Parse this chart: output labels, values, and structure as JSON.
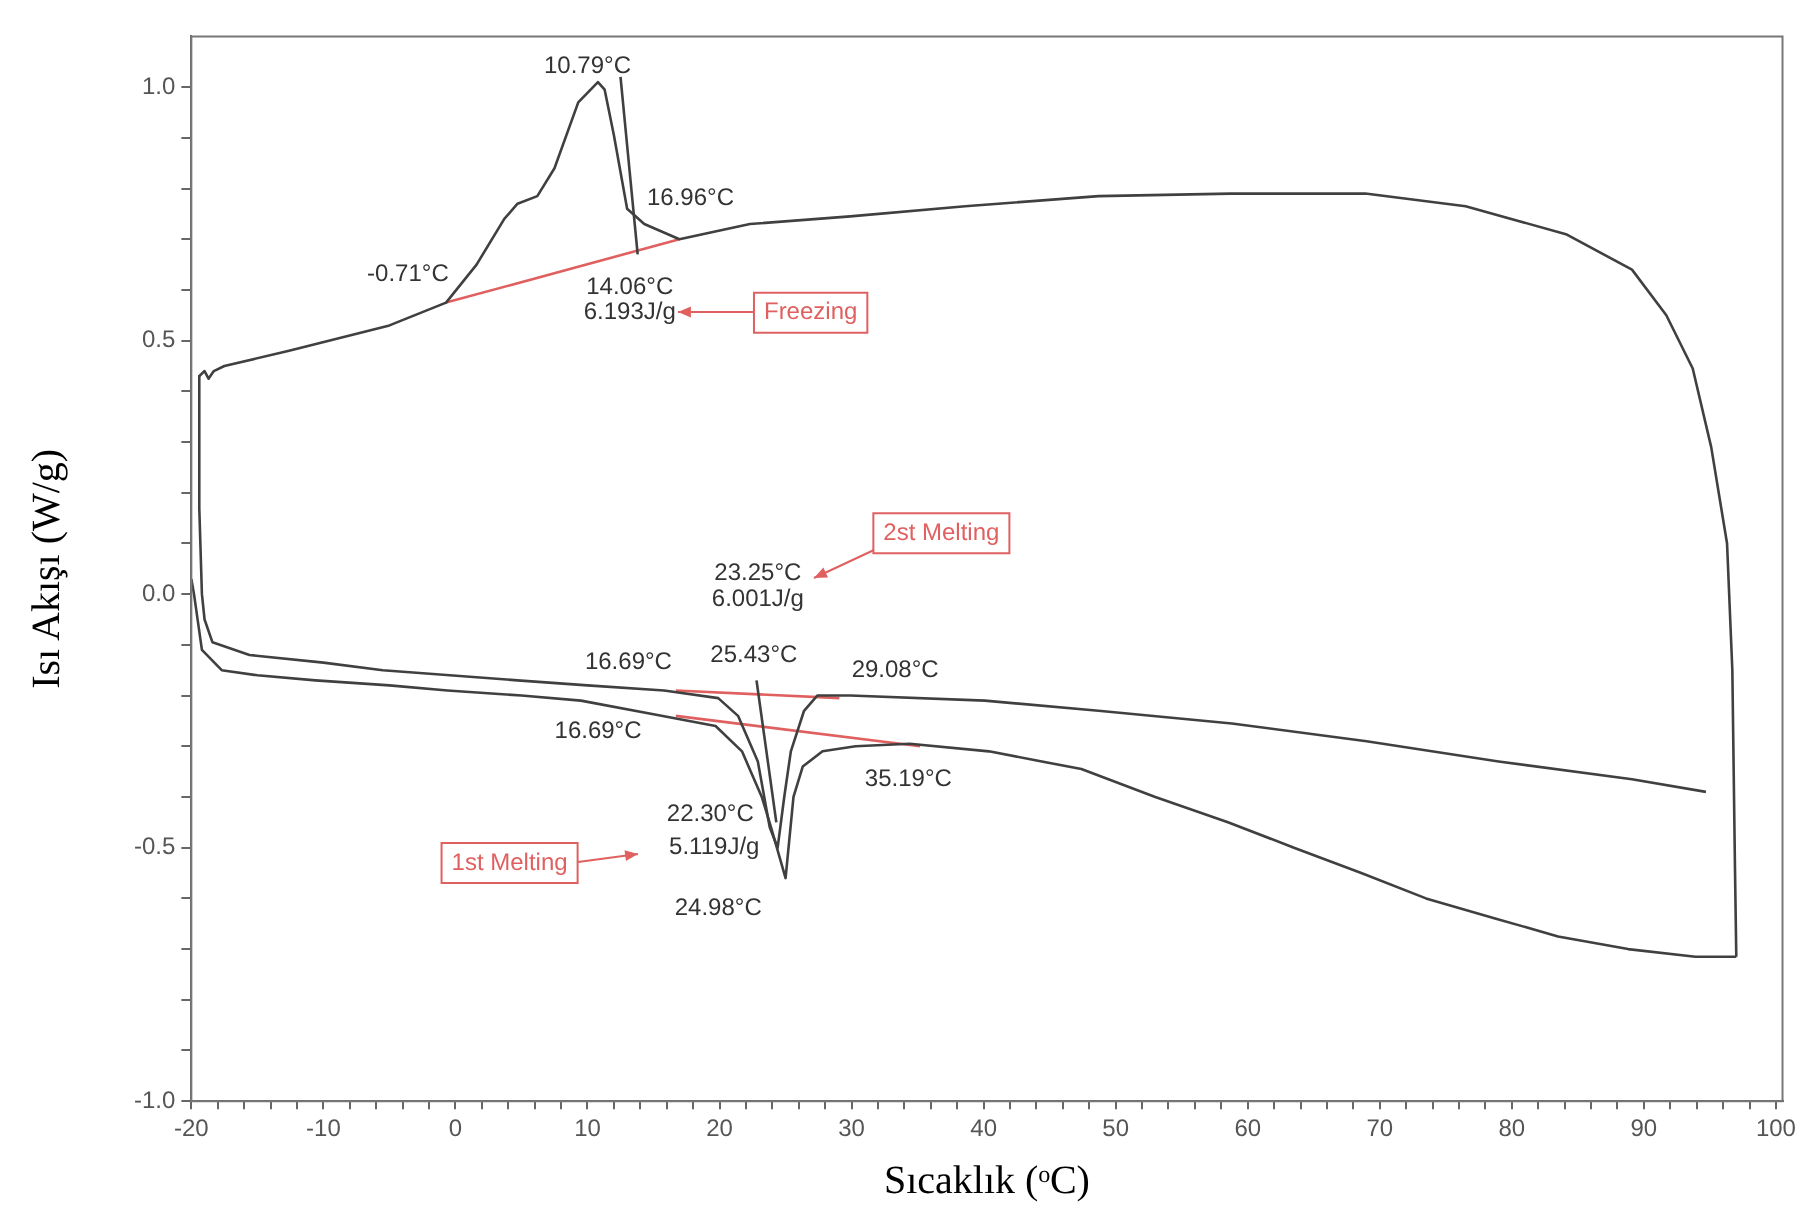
{
  "chart_data": {
    "type": "line",
    "xlabel": "Sıcaklık (ᵒC)",
    "ylabel": "Isı Akışı (W/g)",
    "xlim": [
      -20,
      100.5
    ],
    "ylim": [
      -1.0,
      1.1
    ],
    "xticks": [
      -20,
      {
        "value": -18,
        "label": null
      },
      {
        "value": -16,
        "label": null
      },
      {
        "value": -14,
        "label": null
      },
      {
        "value": -12,
        "label": null
      },
      -10,
      {
        "value": -8,
        "label": null
      },
      {
        "value": -6,
        "label": null
      },
      {
        "value": -4,
        "label": null
      },
      {
        "value": -2,
        "label": null
      },
      0,
      {
        "value": 2,
        "label": null
      },
      {
        "value": 4,
        "label": null
      },
      {
        "value": 6,
        "label": null
      },
      {
        "value": 8,
        "label": null
      },
      10,
      {
        "value": 12,
        "label": null
      },
      {
        "value": 14,
        "label": null
      },
      {
        "value": 16,
        "label": null
      },
      {
        "value": 18,
        "label": null
      },
      20,
      {
        "value": 22,
        "label": null
      },
      {
        "value": 24,
        "label": null
      },
      {
        "value": 26,
        "label": null
      },
      {
        "value": 28,
        "label": null
      },
      30,
      {
        "value": 32,
        "label": null
      },
      {
        "value": 34,
        "label": null
      },
      {
        "value": 36,
        "label": null
      },
      {
        "value": 38,
        "label": null
      },
      40,
      {
        "value": 42,
        "label": null
      },
      {
        "value": 44,
        "label": null
      },
      {
        "value": 46,
        "label": null
      },
      {
        "value": 48,
        "label": null
      },
      50,
      {
        "value": 52,
        "label": null
      },
      {
        "value": 54,
        "label": null
      },
      {
        "value": 56,
        "label": null
      },
      {
        "value": 58,
        "label": null
      },
      60,
      {
        "value": 62,
        "label": null
      },
      {
        "value": 64,
        "label": null
      },
      {
        "value": 66,
        "label": null
      },
      {
        "value": 68,
        "label": null
      },
      70,
      {
        "value": 72,
        "label": null
      },
      {
        "value": 74,
        "label": null
      },
      {
        "value": 76,
        "label": null
      },
      {
        "value": 78,
        "label": null
      },
      80,
      {
        "value": 82,
        "label": null
      },
      {
        "value": 84,
        "label": null
      },
      {
        "value": 86,
        "label": null
      },
      {
        "value": 88,
        "label": null
      },
      90,
      {
        "value": 92,
        "label": null
      },
      {
        "value": 94,
        "label": null
      },
      {
        "value": 96,
        "label": null
      },
      {
        "value": 98,
        "label": null
      },
      100
    ],
    "yticks": [
      {
        "value": -1.0,
        "label": "-1.0"
      },
      {
        "value": -0.9,
        "label": null
      },
      {
        "value": -0.8,
        "label": null
      },
      {
        "value": -0.7,
        "label": null
      },
      {
        "value": -0.6,
        "label": null
      },
      {
        "value": -0.5,
        "label": "-0.5"
      },
      {
        "value": -0.4,
        "label": null
      },
      {
        "value": -0.3,
        "label": null
      },
      {
        "value": -0.2,
        "label": null
      },
      {
        "value": -0.1,
        "label": null
      },
      {
        "value": 0.0,
        "label": "0.0"
      },
      {
        "value": 0.1,
        "label": null
      },
      {
        "value": 0.2,
        "label": null
      },
      {
        "value": 0.3,
        "label": null
      },
      {
        "value": 0.4,
        "label": null
      },
      {
        "value": 0.5,
        "label": "0.5"
      },
      {
        "value": 0.6,
        "label": null
      },
      {
        "value": 0.7,
        "label": null
      },
      {
        "value": 0.8,
        "label": null
      },
      {
        "value": 0.9,
        "label": null
      },
      {
        "value": 1.0,
        "label": "1.0"
      }
    ],
    "grid": false,
    "legend": false,
    "marker": "none",
    "line_style": "solid",
    "series": [
      {
        "color": "#404040",
        "x": [
          -20,
          -19.8,
          -19.2,
          -17.7,
          -15,
          -10.6,
          -5,
          -0.6,
          5,
          9.5,
          15.6,
          19.7,
          21.7,
          23.2,
          23.9,
          25.0,
          25.6,
          26.3,
          27.8,
          30.3,
          34.4,
          40.4,
          47.4,
          53,
          58.5,
          63.5,
          68.6,
          73.5,
          78.8,
          83.5,
          88.8,
          93.9,
          97.0
        ],
        "values": [
          0.03,
          0.0,
          -0.11,
          -0.15,
          -0.16,
          -0.17,
          -0.18,
          -0.19,
          -0.2,
          -0.21,
          -0.24,
          -0.26,
          -0.31,
          -0.4,
          -0.46,
          -0.56,
          -0.4,
          -0.34,
          -0.31,
          -0.3,
          -0.295,
          -0.31,
          -0.345,
          -0.4,
          -0.45,
          -0.5,
          -0.55,
          -0.6,
          -0.64,
          -0.675,
          -0.7,
          -0.715,
          -0.715
        ]
      },
      {
        "color": "#404040",
        "x": [
          97.0,
          96.9,
          96.7,
          96.3,
          95.1,
          93.7,
          91.7,
          89.1,
          84.1,
          76.5,
          68.9,
          58.7,
          48.7,
          38.6,
          29.9,
          22.3,
          16.96,
          14.3,
          13.0,
          12.0,
          11.3,
          10.79,
          9.3,
          7.5,
          6.2,
          4.7,
          3.7,
          1.6,
          -0.71,
          -5,
          -12.6,
          -17.5,
          -18.3,
          -18.7,
          -19.0,
          -19.4
        ],
        "values": [
          -0.715,
          -0.54,
          -0.15,
          0.1,
          0.29,
          0.445,
          0.55,
          0.64,
          0.71,
          0.765,
          0.79,
          0.79,
          0.785,
          0.765,
          0.745,
          0.73,
          0.7,
          0.73,
          0.76,
          0.905,
          0.995,
          1.01,
          0.97,
          0.84,
          0.785,
          0.77,
          0.74,
          0.65,
          0.575,
          0.53,
          0.48,
          0.45,
          0.44,
          0.425,
          0.44,
          0.43
        ]
      },
      {
        "color": "#404040",
        "x": [
          -19.4,
          -19.4,
          -19.2,
          -19.0,
          -18.4,
          -15.6,
          -10,
          -5.5,
          4.7,
          10,
          15.8,
          19.9,
          21.4,
          22.9,
          23.8,
          24.4,
          24.9,
          25.4,
          26.4,
          27.4,
          29.9,
          40.1,
          48.7,
          58.8,
          69,
          79,
          89.1,
          94.7
        ],
        "values": [
          0.43,
          0.17,
          0.0,
          -0.05,
          -0.095,
          -0.12,
          -0.135,
          -0.15,
          -0.17,
          -0.18,
          -0.19,
          -0.205,
          -0.24,
          -0.33,
          -0.46,
          -0.5,
          -0.4,
          -0.31,
          -0.23,
          -0.2,
          -0.2,
          -0.21,
          -0.23,
          -0.255,
          -0.29,
          -0.33,
          -0.365,
          -0.39
        ]
      },
      {
        "color": "#404040",
        "x": [
          13.8,
          12.5
        ],
        "values": [
          0.67,
          1.02
        ]
      },
      {
        "color": "#404040",
        "x": [
          22.8,
          24.3
        ],
        "values": [
          -0.17,
          -0.45
        ]
      },
      {
        "color": "#e06060",
        "x": [
          -0.71,
          16.96
        ],
        "values": [
          0.575,
          0.7
        ]
      },
      {
        "color": "#e06060",
        "x": [
          16.69,
          29.08
        ],
        "values": [
          -0.19,
          -0.205
        ]
      },
      {
        "color": "#e06060",
        "x": [
          16.69,
          35.19
        ],
        "values": [
          -0.24,
          -0.3
        ]
      }
    ],
    "annotations": [
      "10.79°C",
      "16.96°C",
      "-0.71°C",
      "14.06°C",
      "6.193J/g",
      "Freezing",
      "2st Melting",
      "23.25°C",
      "6.001J/g",
      "16.69°C",
      "25.43°C",
      "29.08°C",
      "16.69°C",
      "35.19°C",
      "22.30°C",
      "5.119J/g",
      "1st Melting",
      "24.98°C"
    ]
  }
}
